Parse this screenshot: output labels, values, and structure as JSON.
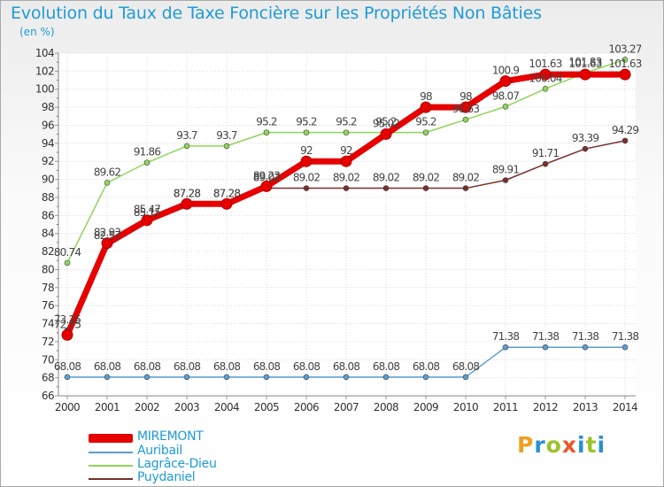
{
  "chart_data": {
    "type": "line",
    "title": "Evolution du Taux de Taxe Foncière sur les Propriétés Non Bâties",
    "ylabel": "(en %)",
    "xlabel": "",
    "ylim": [
      66,
      104
    ],
    "yticks": [
      66,
      68,
      70,
      72,
      74,
      76,
      78,
      80,
      82,
      84,
      86,
      88,
      90,
      92,
      94,
      96,
      98,
      100,
      102,
      104
    ],
    "categories": [
      "2000",
      "2001",
      "2002",
      "2003",
      "2004",
      "2005",
      "2006",
      "2007",
      "2008",
      "2009",
      "2010",
      "2011",
      "2012",
      "2013",
      "2014"
    ],
    "series": [
      {
        "name": "MIREMONT",
        "color": "#e60000",
        "values": [
          72.75,
          82.93,
          85.47,
          87.28,
          87.28,
          89.23,
          92,
          92,
          95.02,
          98,
          98,
          100.9,
          101.63,
          101.63,
          101.63
        ],
        "labels": [
          "72.75",
          "82.93",
          "85.47",
          "87.28",
          "87.28",
          "89.23",
          "92",
          "92",
          "95.02",
          "98",
          "98",
          "100.9",
          "101.63",
          "101.63",
          "101.63"
        ]
      },
      {
        "name": "Auribail",
        "color": "#5c9dd1",
        "values": [
          68.08,
          68.08,
          68.08,
          68.08,
          68.08,
          68.08,
          68.08,
          68.08,
          68.08,
          68.08,
          68.08,
          71.38,
          71.38,
          71.38,
          71.38
        ],
        "labels": [
          "68.08",
          "68.08",
          "68.08",
          "68.08",
          "68.08",
          "68.08",
          "68.08",
          "68.08",
          "68.08",
          "68.08",
          "68.08",
          "71.38",
          "71.38",
          "71.38",
          "71.38"
        ]
      },
      {
        "name": "Lagrâce-Dieu",
        "color": "#8fd55a",
        "values": [
          80.74,
          89.62,
          91.86,
          93.7,
          93.7,
          95.2,
          95.2,
          95.2,
          95.2,
          95.2,
          96.63,
          98.07,
          100.04,
          101.83,
          103.27
        ],
        "labels": [
          "80.74",
          "89.62",
          "91.86",
          "93.7",
          "93.7",
          "95.2",
          "95.2",
          "95.2",
          "95.2",
          "95.2",
          "96.63",
          "98.07",
          "100.04",
          "101.83",
          "103.27"
        ]
      },
      {
        "name": "Puydaniel",
        "color": "#7a2e2e",
        "values": [
          73.25,
          82.57,
          85.15,
          87.28,
          87.28,
          89.02,
          89.02,
          89.02,
          89.02,
          89.02,
          89.02,
          89.91,
          91.71,
          93.39,
          94.29
        ],
        "labels": [
          "73.25",
          "82.57",
          "85.15",
          "87.28",
          "87.28",
          "89.02",
          "89.02",
          "89.02",
          "89.02",
          "89.02",
          "89.02",
          "89.91",
          "91.71",
          "93.39",
          "94.29"
        ]
      }
    ],
    "legend_position": "bottom-left"
  },
  "logo": {
    "text": "Proxiti",
    "colors": [
      "#f0a01e",
      "#2a8fd6",
      "#9cc32a",
      "#e8582a",
      "#2a8fd6",
      "#9cc32a",
      "#2a8fd6"
    ]
  }
}
